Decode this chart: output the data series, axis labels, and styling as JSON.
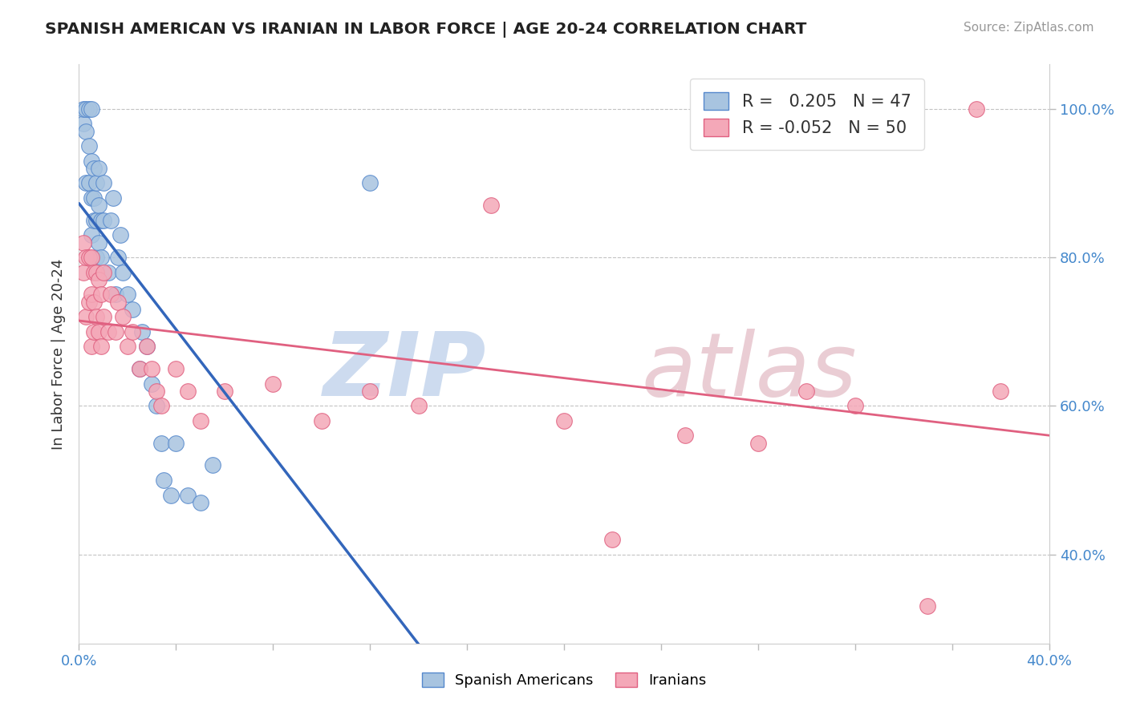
{
  "title": "SPANISH AMERICAN VS IRANIAN IN LABOR FORCE | AGE 20-24 CORRELATION CHART",
  "source": "Source: ZipAtlas.com",
  "ylabel": "In Labor Force | Age 20-24",
  "xlim": [
    0.0,
    0.4
  ],
  "ylim": [
    0.28,
    1.06
  ],
  "yticks": [
    0.4,
    0.6,
    0.8,
    1.0
  ],
  "xticks": [
    0.0,
    0.04,
    0.08,
    0.12,
    0.16,
    0.2,
    0.24,
    0.28,
    0.32,
    0.36,
    0.4
  ],
  "blue_R": 0.205,
  "blue_N": 47,
  "pink_R": -0.052,
  "pink_N": 50,
  "legend_label_blue": "Spanish Americans",
  "legend_label_pink": "Iranians",
  "blue_color": "#A8C4E0",
  "pink_color": "#F4A8B8",
  "blue_edge_color": "#5588CC",
  "pink_edge_color": "#E06080",
  "blue_line_color": "#3366BB",
  "pink_line_color": "#E06080",
  "background_color": "#FFFFFF",
  "blue_scatter_x": [
    0.002,
    0.002,
    0.003,
    0.003,
    0.003,
    0.004,
    0.004,
    0.004,
    0.005,
    0.005,
    0.005,
    0.005,
    0.006,
    0.006,
    0.006,
    0.007,
    0.007,
    0.007,
    0.008,
    0.008,
    0.008,
    0.009,
    0.009,
    0.01,
    0.01,
    0.012,
    0.013,
    0.014,
    0.015,
    0.016,
    0.017,
    0.018,
    0.02,
    0.022,
    0.025,
    0.026,
    0.028,
    0.03,
    0.032,
    0.034,
    0.035,
    0.038,
    0.04,
    0.045,
    0.05,
    0.055,
    0.12
  ],
  "blue_scatter_y": [
    0.98,
    1.0,
    0.9,
    0.97,
    1.0,
    0.9,
    0.95,
    1.0,
    0.83,
    0.88,
    0.93,
    1.0,
    0.85,
    0.88,
    0.92,
    0.8,
    0.85,
    0.9,
    0.82,
    0.87,
    0.92,
    0.8,
    0.85,
    0.85,
    0.9,
    0.78,
    0.85,
    0.88,
    0.75,
    0.8,
    0.83,
    0.78,
    0.75,
    0.73,
    0.65,
    0.7,
    0.68,
    0.63,
    0.6,
    0.55,
    0.5,
    0.48,
    0.55,
    0.48,
    0.47,
    0.52,
    0.9
  ],
  "pink_scatter_x": [
    0.002,
    0.002,
    0.003,
    0.003,
    0.004,
    0.004,
    0.005,
    0.005,
    0.005,
    0.006,
    0.006,
    0.006,
    0.007,
    0.007,
    0.008,
    0.008,
    0.009,
    0.009,
    0.01,
    0.01,
    0.012,
    0.013,
    0.015,
    0.016,
    0.018,
    0.02,
    0.022,
    0.025,
    0.028,
    0.03,
    0.032,
    0.034,
    0.04,
    0.045,
    0.05,
    0.06,
    0.08,
    0.1,
    0.12,
    0.14,
    0.17,
    0.2,
    0.22,
    0.25,
    0.28,
    0.3,
    0.32,
    0.35,
    0.37,
    0.38
  ],
  "pink_scatter_y": [
    0.78,
    0.82,
    0.72,
    0.8,
    0.74,
    0.8,
    0.68,
    0.75,
    0.8,
    0.7,
    0.74,
    0.78,
    0.72,
    0.78,
    0.7,
    0.77,
    0.68,
    0.75,
    0.72,
    0.78,
    0.7,
    0.75,
    0.7,
    0.74,
    0.72,
    0.68,
    0.7,
    0.65,
    0.68,
    0.65,
    0.62,
    0.6,
    0.65,
    0.62,
    0.58,
    0.62,
    0.63,
    0.58,
    0.62,
    0.6,
    0.87,
    0.58,
    0.42,
    0.56,
    0.55,
    0.62,
    0.6,
    0.33,
    1.0,
    0.62
  ]
}
